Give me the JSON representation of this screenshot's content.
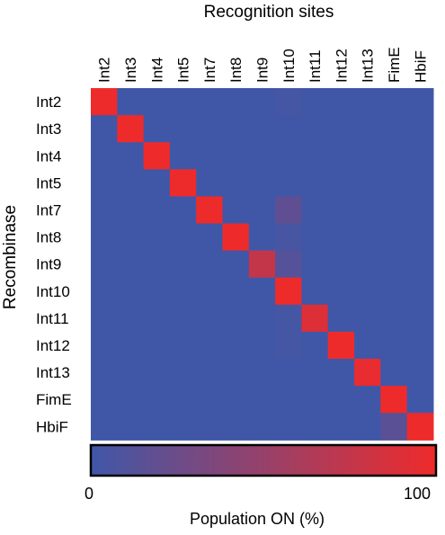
{
  "chart_data": {
    "type": "heatmap",
    "title": "",
    "xlabel": "Recognition sites",
    "ylabel": "Recombinase",
    "x_categories": [
      "Int2",
      "Int3",
      "Int4",
      "Int5",
      "Int7",
      "Int8",
      "Int9",
      "Int10",
      "Int11",
      "Int12",
      "Int13",
      "FimE",
      "HbiF"
    ],
    "y_categories": [
      "Int2",
      "Int3",
      "Int4",
      "Int5",
      "Int7",
      "Int8",
      "Int9",
      "Int10",
      "Int11",
      "Int12",
      "Int13",
      "FimE",
      "HbiF"
    ],
    "values": [
      [
        100,
        0,
        0,
        0,
        0,
        0,
        0,
        3,
        0,
        0,
        0,
        0,
        0
      ],
      [
        0,
        100,
        0,
        0,
        0,
        0,
        0,
        0,
        0,
        0,
        0,
        0,
        0
      ],
      [
        0,
        0,
        100,
        0,
        0,
        0,
        0,
        0,
        0,
        0,
        0,
        0,
        0
      ],
      [
        0,
        0,
        0,
        100,
        0,
        0,
        0,
        0,
        0,
        0,
        0,
        0,
        0
      ],
      [
        0,
        0,
        0,
        0,
        100,
        0,
        0,
        18,
        0,
        0,
        0,
        0,
        0
      ],
      [
        0,
        0,
        0,
        0,
        0,
        100,
        0,
        4,
        0,
        0,
        0,
        0,
        0
      ],
      [
        0,
        0,
        0,
        0,
        0,
        0,
        75,
        12,
        0,
        0,
        0,
        0,
        0
      ],
      [
        0,
        0,
        0,
        0,
        0,
        0,
        0,
        100,
        0,
        0,
        0,
        0,
        0
      ],
      [
        0,
        0,
        0,
        0,
        0,
        0,
        0,
        3,
        90,
        0,
        0,
        0,
        0
      ],
      [
        0,
        0,
        0,
        0,
        0,
        0,
        0,
        3,
        0,
        100,
        0,
        0,
        0
      ],
      [
        0,
        0,
        0,
        0,
        0,
        0,
        0,
        0,
        0,
        0,
        97,
        0,
        0
      ],
      [
        0,
        0,
        0,
        0,
        0,
        0,
        0,
        0,
        0,
        0,
        0,
        100,
        0
      ],
      [
        0,
        0,
        0,
        0,
        0,
        0,
        0,
        0,
        0,
        0,
        0,
        15,
        100
      ]
    ],
    "colorbar": {
      "label": "Population ON (%)",
      "min": 0,
      "max": 100,
      "min_label": "0",
      "max_label": "100",
      "colors": [
        "#4057a8",
        "#ee2b2b"
      ]
    }
  }
}
